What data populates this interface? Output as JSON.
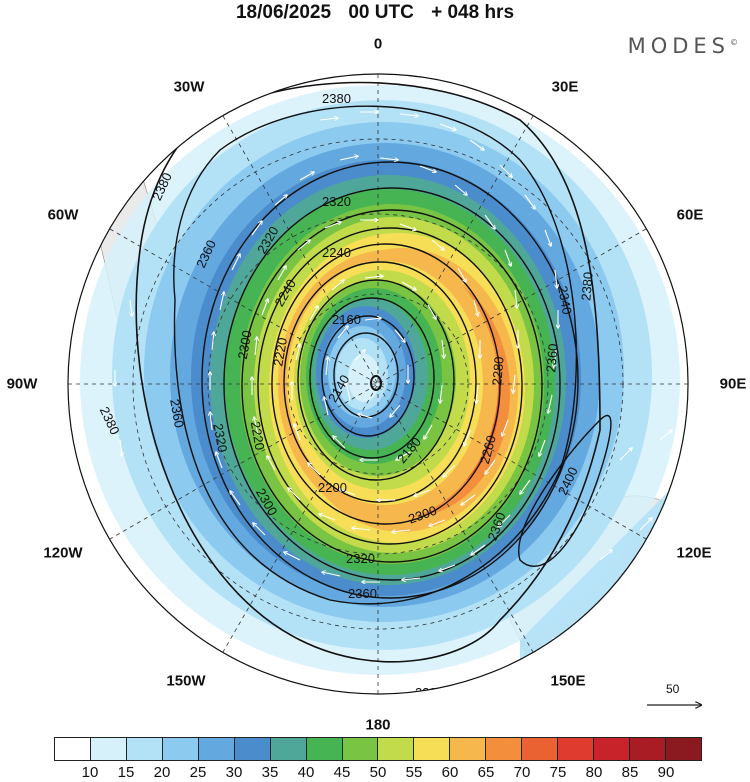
{
  "header": {
    "date": "18/06/2025",
    "run": "00 UTC",
    "lead": "+ 048 hrs"
  },
  "brand": {
    "name": "MODES",
    "mark": "©"
  },
  "longitude_labels": {
    "lon_0": "0",
    "lon_30e": "30E",
    "lon_60e": "60E",
    "lon_90e": "90E",
    "lon_120e": "120E",
    "lon_150e": "150E",
    "lon_180": "180",
    "lon_150w": "150W",
    "lon_120w": "120W",
    "lon_90w": "90W",
    "lon_60w": "60W",
    "lon_30w": "30W"
  },
  "contours": {
    "labels": [
      "2140",
      "2160",
      "2180",
      "2200",
      "2220",
      "2240",
      "2260",
      "2280",
      "2300",
      "2320",
      "2340",
      "2360",
      "2380",
      "2400"
    ]
  },
  "reference_vector": {
    "value": "50"
  },
  "colorbar": {
    "colors": [
      "#ffffff",
      "#d7f1fb",
      "#b3e2f7",
      "#8ccaf0",
      "#64a8e0",
      "#4b8ccc",
      "#4fa79a",
      "#47b454",
      "#7ac444",
      "#c2db4a",
      "#f6df57",
      "#f6b74c",
      "#f38f3c",
      "#ea6232",
      "#df3b2f",
      "#c8232a",
      "#a91c24",
      "#8a1a1f"
    ],
    "ticks": [
      "10",
      "15",
      "20",
      "25",
      "30",
      "35",
      "40",
      "45",
      "50",
      "55",
      "60",
      "65",
      "70",
      "75",
      "80",
      "85",
      "90"
    ]
  }
}
